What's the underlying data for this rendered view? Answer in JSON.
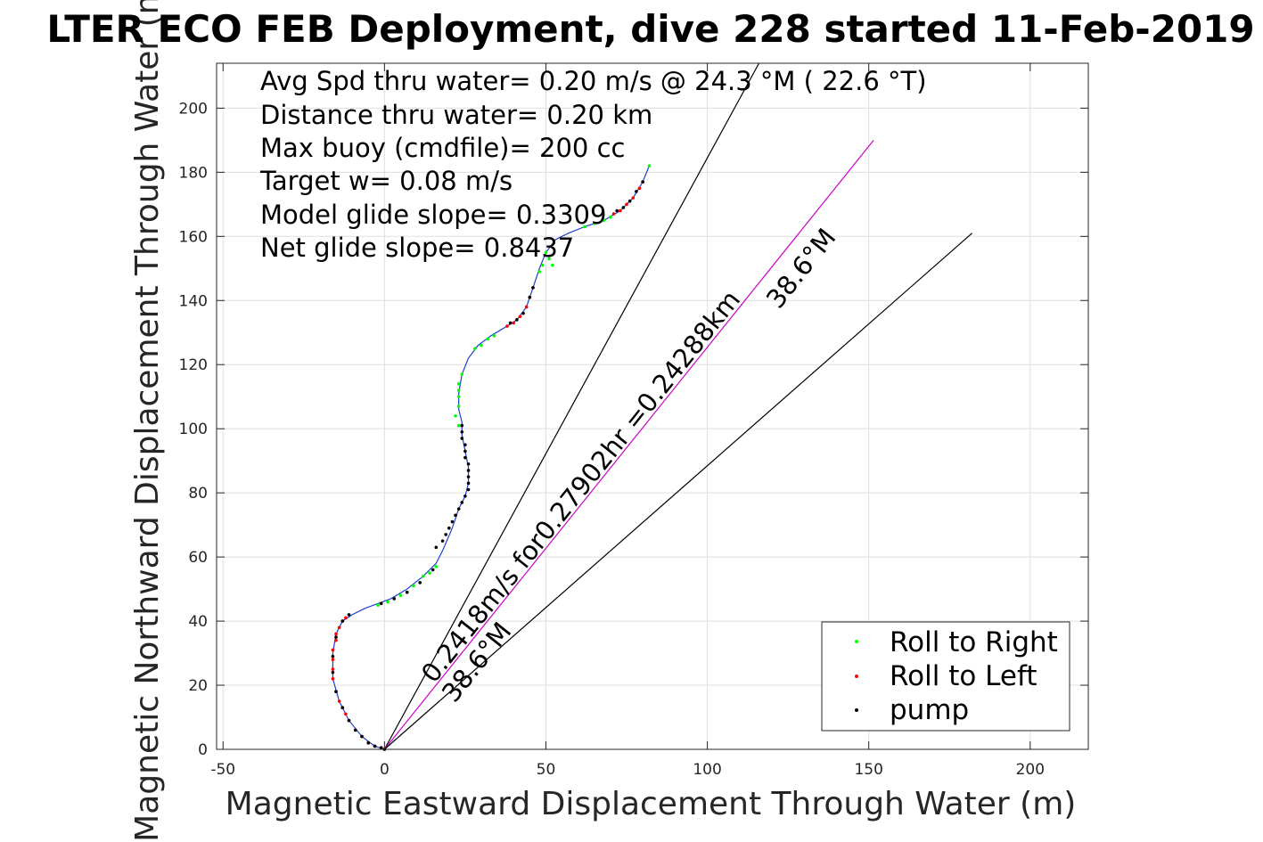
{
  "chart_data": {
    "type": "scatter",
    "title": "LTER ECO FEB Deployment, dive 228 started 11-Feb-2019",
    "xlabel": "Magnetic Eastward Displacement Through Water (m)",
    "ylabel": "Magnetic Northward Displacement Through Water (m)",
    "xlim": [
      -52,
      218
    ],
    "ylim": [
      0,
      214
    ],
    "xticks": [
      -50,
      0,
      50,
      100,
      150,
      200
    ],
    "yticks": [
      0,
      20,
      40,
      60,
      80,
      100,
      120,
      140,
      160,
      180,
      200
    ],
    "grid": true,
    "legend": "bottom-right",
    "info_lines": [
      "Avg Spd thru water=  0.20 m/s @  24.3 °M ( 22.6 °T)",
      "Distance thru water=  0.20 km",
      "Max buoy (cmdfile)= 200 cc",
      "Target w= 0.08 m/s",
      "Model glide slope= 0.3309",
      "Net glide slope= 0.8437"
    ],
    "annotations": {
      "speed": "0.2418m/s for0.27902hr =0.24288km",
      "heading_upper": "38.6°M",
      "heading_lower": "38.6°M"
    },
    "track_line": [
      [
        0,
        0
      ],
      [
        -3,
        1
      ],
      [
        -7,
        4
      ],
      [
        -11,
        9
      ],
      [
        -14,
        15
      ],
      [
        -16,
        22
      ],
      [
        -16,
        30
      ],
      [
        -15,
        36
      ],
      [
        -13,
        40
      ],
      [
        -10,
        42
      ],
      [
        -6,
        44
      ],
      [
        -2,
        45.5
      ],
      [
        2,
        47
      ],
      [
        7,
        50
      ],
      [
        12,
        54
      ],
      [
        16,
        58
      ],
      [
        18,
        62
      ],
      [
        21,
        69
      ],
      [
        23,
        75
      ],
      [
        25,
        79
      ],
      [
        26,
        83
      ],
      [
        26,
        88
      ],
      [
        25,
        93
      ],
      [
        24,
        98
      ],
      [
        24,
        102
      ],
      [
        23,
        106
      ],
      [
        23,
        111
      ],
      [
        24,
        117
      ],
      [
        26,
        122
      ],
      [
        29,
        126
      ],
      [
        33,
        129
      ],
      [
        38,
        132
      ],
      [
        41,
        134
      ],
      [
        44,
        138
      ],
      [
        46,
        144
      ],
      [
        48,
        150
      ],
      [
        50,
        155
      ],
      [
        53,
        159
      ],
      [
        57,
        161
      ],
      [
        62,
        163
      ],
      [
        68,
        165
      ],
      [
        73,
        168
      ],
      [
        77,
        172
      ],
      [
        80,
        177
      ],
      [
        82,
        182
      ]
    ],
    "heading_lines": [
      {
        "name": "upper bound",
        "x": [
          0,
          116
        ],
        "y": [
          0,
          214
        ]
      },
      {
        "name": "mean heading",
        "x": [
          0,
          151.5
        ],
        "y": [
          0,
          190
        ]
      },
      {
        "name": "lower bound",
        "x": [
          0,
          182
        ],
        "y": [
          0,
          161
        ]
      }
    ],
    "series": [
      {
        "name": "Roll to Right",
        "color": "#00ff00",
        "points": [
          [
            50,
            155
          ],
          [
            51,
            153
          ],
          [
            52,
            151
          ],
          [
            48,
            149
          ],
          [
            49,
            151
          ],
          [
            62,
            163
          ],
          [
            65,
            164
          ],
          [
            68,
            165
          ],
          [
            70,
            166
          ],
          [
            82,
            182
          ],
          [
            28,
            125
          ],
          [
            30,
            126
          ],
          [
            32,
            128
          ],
          [
            34,
            129
          ],
          [
            24,
            117
          ],
          [
            23,
            114
          ],
          [
            23,
            112
          ],
          [
            23,
            110
          ],
          [
            22,
            104
          ],
          [
            23,
            101
          ],
          [
            23,
            107
          ],
          [
            5,
            48
          ],
          [
            7,
            49
          ],
          [
            9,
            51
          ],
          [
            11,
            52
          ],
          [
            12,
            54
          ],
          [
            14,
            55
          ],
          [
            16,
            57
          ],
          [
            1,
            46
          ],
          [
            3,
            47
          ],
          [
            -2,
            45
          ]
        ]
      },
      {
        "name": "Roll to Left",
        "color": "#ff0000",
        "points": [
          [
            0,
            0
          ],
          [
            -1,
            0.5
          ],
          [
            -3,
            1
          ],
          [
            -5,
            2
          ],
          [
            -7,
            4
          ],
          [
            -9,
            6
          ],
          [
            -11,
            9
          ],
          [
            -12,
            11
          ],
          [
            -13,
            13
          ],
          [
            -14,
            15
          ],
          [
            -15,
            18
          ],
          [
            -16,
            22
          ],
          [
            -16,
            25
          ],
          [
            -16,
            28
          ],
          [
            -16,
            31
          ],
          [
            -15,
            34
          ],
          [
            -15,
            36
          ],
          [
            -14,
            38
          ],
          [
            -13,
            40
          ],
          [
            -12,
            41
          ],
          [
            38,
            132
          ],
          [
            40,
            133
          ],
          [
            42,
            135
          ],
          [
            44,
            138
          ],
          [
            45,
            141
          ],
          [
            46,
            144
          ],
          [
            71,
            167
          ],
          [
            73,
            168
          ],
          [
            75,
            170
          ],
          [
            77,
            172
          ],
          [
            79,
            175
          ],
          [
            80,
            177
          ]
        ]
      },
      {
        "name": "pump",
        "color": "#000000",
        "points": [
          [
            0,
            0
          ],
          [
            -1,
            0.5
          ],
          [
            -3,
            1
          ],
          [
            -5,
            2
          ],
          [
            -7,
            4
          ],
          [
            -9,
            6
          ],
          [
            -11,
            9
          ],
          [
            -13,
            13
          ],
          [
            -15,
            18
          ],
          [
            -16,
            24
          ],
          [
            -16,
            29
          ],
          [
            -15,
            35
          ],
          [
            -13,
            40
          ],
          [
            -11,
            42
          ],
          [
            -1,
            45.5
          ],
          [
            3,
            47
          ],
          [
            7,
            49
          ],
          [
            11,
            52
          ],
          [
            15,
            56
          ],
          [
            16,
            63
          ],
          [
            18,
            65
          ],
          [
            19,
            67
          ],
          [
            20,
            69
          ],
          [
            21,
            71
          ],
          [
            22,
            73
          ],
          [
            23,
            75
          ],
          [
            24,
            77
          ],
          [
            25,
            79
          ],
          [
            26,
            81
          ],
          [
            26,
            83
          ],
          [
            26,
            85
          ],
          [
            26,
            87
          ],
          [
            26,
            89
          ],
          [
            25,
            91
          ],
          [
            25,
            93
          ],
          [
            25,
            95
          ],
          [
            24,
            97
          ],
          [
            24,
            99
          ],
          [
            24,
            101
          ],
          [
            39,
            133
          ],
          [
            41,
            134
          ],
          [
            43,
            136
          ],
          [
            45,
            141
          ],
          [
            46,
            144
          ],
          [
            72,
            168
          ],
          [
            74,
            169
          ],
          [
            76,
            171
          ],
          [
            78,
            174
          ],
          [
            80,
            177
          ]
        ]
      }
    ]
  }
}
